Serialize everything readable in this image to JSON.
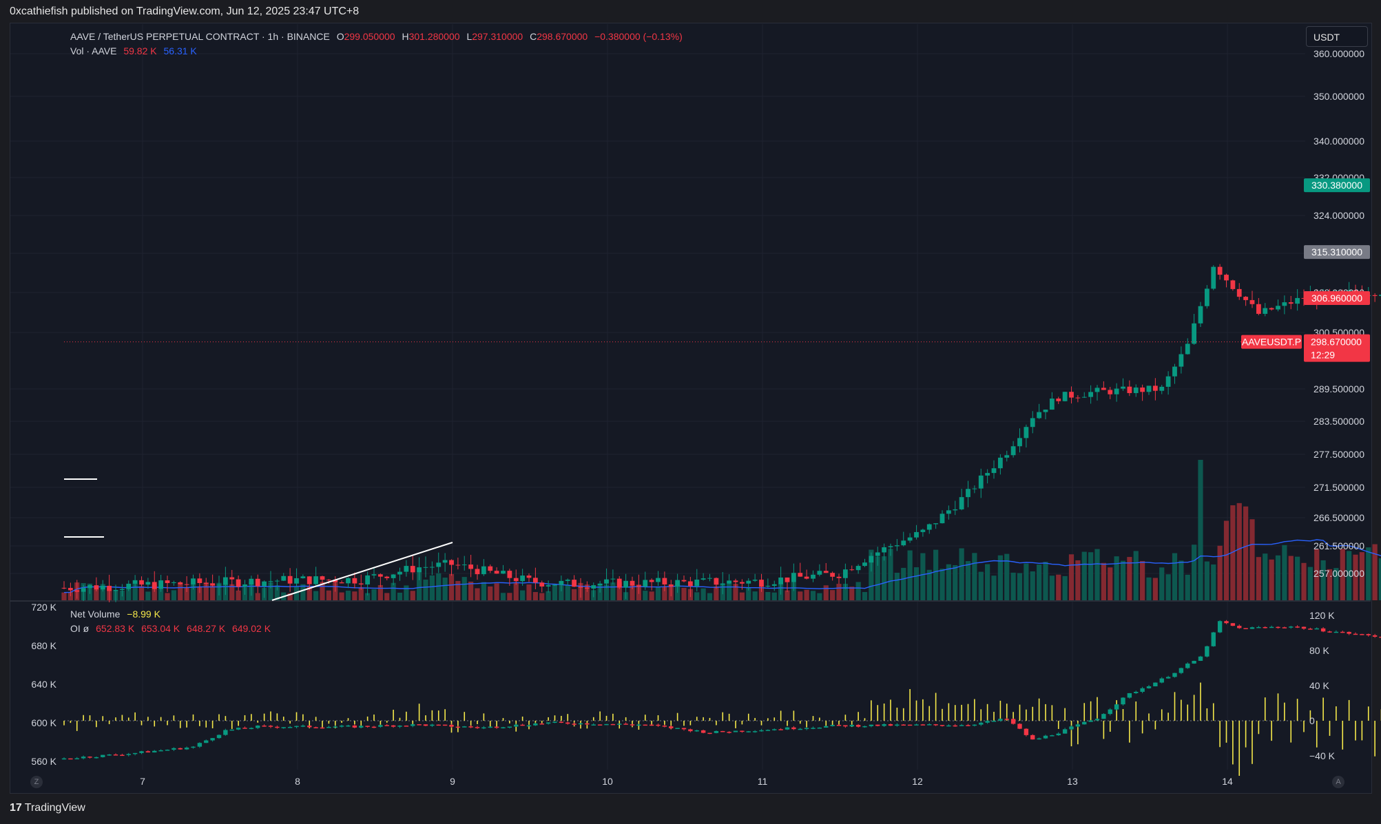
{
  "header": {
    "publisher": "0xcathiefish published on TradingView.com, Jun 12, 2025 23:47 UTC+8"
  },
  "unit_selector": "USDT",
  "main_legend": {
    "symbol": "AAVE / TetherUS PERPETUAL CONTRACT · 1h · BINANCE",
    "o_label": "O",
    "o": "299.050000",
    "h_label": "H",
    "h": "301.280000",
    "l_label": "L",
    "l": "297.310000",
    "c_label": "C",
    "c": "298.670000",
    "change": "−0.380000 (−0.13%)"
  },
  "vol_legend": {
    "label": "Vol · AAVE",
    "v1": "59.82 K",
    "v2": "56.31 K"
  },
  "net_volume_legend": {
    "label": "Net Volume",
    "value": "−8.99 K"
  },
  "oi_legend": {
    "label": "OI  ø",
    "v1": "652.83 K",
    "v2": "653.04 K",
    "v3": "648.27 K",
    "v4": "649.02 K"
  },
  "price_badges": [
    {
      "text": "330.380000",
      "color": "#089981"
    },
    {
      "text": "315.310000",
      "color": "#787b86"
    },
    {
      "text": "306.960000",
      "color": "#f23645"
    }
  ],
  "last_price": {
    "symbol": "AAVEUSDT.P",
    "price": "298.670000",
    "countdown": "12:29",
    "color": "#f23645"
  },
  "footer": {
    "brand": "TradingView",
    "logo": "17"
  },
  "scale_buttons": {
    "left": "Z",
    "right": "A"
  },
  "colors": {
    "up": "#089981",
    "down": "#f23645",
    "ma": "#2962ff",
    "netvol": "#f5e84a",
    "bg": "#151924"
  },
  "chart_data": [
    {
      "type": "candlestick",
      "title": "AAVE / TetherUS PERPETUAL CONTRACT · 1h · BINANCE",
      "x_labels": [
        "7",
        "8",
        "9",
        "10",
        "11",
        "12",
        "13",
        "14"
      ],
      "y_tick_labels": [
        "360.000000",
        "350.000000",
        "340.000000",
        "332.000000",
        "324.000000",
        "315.000000",
        "308.000000",
        "300.500000",
        "289.500000",
        "283.500000",
        "277.500000",
        "271.500000",
        "266.500000",
        "261.500000",
        "257.000000"
      ],
      "y_ticks": [
        360,
        350,
        340,
        332,
        324,
        315,
        308,
        300.5,
        289.5,
        283.5,
        277.5,
        271.5,
        266.5,
        261.5,
        257
      ],
      "close_anchors": [
        [
          0,
          254.8
        ],
        [
          20,
          255.5
        ],
        [
          35,
          256.0
        ],
        [
          46,
          256.1
        ],
        [
          55,
          258.0
        ],
        [
          60,
          258.5
        ],
        [
          72,
          255.8
        ],
        [
          78,
          255.4
        ],
        [
          95,
          255.6
        ],
        [
          108,
          255.8
        ],
        [
          120,
          257.0
        ],
        [
          125,
          260.0
        ],
        [
          133,
          264.0
        ],
        [
          140,
          270.5
        ],
        [
          146,
          278.0
        ],
        [
          150,
          284.5
        ],
        [
          154,
          288.0
        ],
        [
          160,
          289.0
        ],
        [
          170,
          289.5
        ],
        [
          174,
          298.0
        ],
        [
          178,
          313.0
        ],
        [
          185,
          304.0
        ],
        [
          192,
          307.0
        ],
        [
          200,
          308.0
        ],
        [
          210,
          308.5
        ],
        [
          218,
          308.0
        ],
        [
          226,
          307.0
        ],
        [
          230,
          311.0
        ],
        [
          235,
          313.0
        ],
        [
          240,
          306.0
        ],
        [
          245,
          301.0
        ],
        [
          250,
          298.0
        ],
        [
          256,
          294.0
        ],
        [
          260,
          295.0
        ],
        [
          264,
          300.0
        ],
        [
          265,
          298.7
        ]
      ],
      "volume": {
        "name": "Vol · AAVE",
        "ma_last": 56.31,
        "last": 59.82
      },
      "annotations": {
        "long_position": {
          "entry": 306.96,
          "target": 330.38,
          "stop": 315.31
        }
      }
    },
    {
      "type": "bar",
      "name": "Net Volume",
      "y_tick_labels": [
        "120 K",
        "80 K",
        "40 K",
        "0",
        "−40 K"
      ],
      "y_ticks": [
        120,
        80,
        40,
        0,
        -40
      ],
      "last": -8.99
    },
    {
      "type": "candlestick",
      "name": "OI",
      "y_tick_labels": [
        "720 K",
        "680 K",
        "640 K",
        "600 K",
        "560 K"
      ],
      "y_ticks": [
        720,
        680,
        640,
        600,
        560
      ],
      "close_anchors": [
        [
          0,
          563
        ],
        [
          10,
          568
        ],
        [
          20,
          575
        ],
        [
          25,
          592
        ],
        [
          30,
          596
        ],
        [
          45,
          596
        ],
        [
          55,
          598
        ],
        [
          65,
          595
        ],
        [
          75,
          600
        ],
        [
          90,
          598
        ],
        [
          100,
          590
        ],
        [
          120,
          597
        ],
        [
          140,
          598
        ],
        [
          146,
          604
        ],
        [
          150,
          582
        ],
        [
          154,
          590
        ],
        [
          160,
          605
        ],
        [
          165,
          630
        ],
        [
          170,
          645
        ],
        [
          176,
          668
        ],
        [
          179,
          705
        ],
        [
          182,
          698
        ],
        [
          190,
          700
        ],
        [
          200,
          692
        ],
        [
          210,
          685
        ],
        [
          220,
          688
        ],
        [
          228,
          690
        ],
        [
          232,
          684
        ],
        [
          240,
          676
        ],
        [
          250,
          677
        ],
        [
          258,
          671
        ],
        [
          262,
          673
        ],
        [
          265,
          650
        ]
      ],
      "last_values": [
        "652.83 K",
        "653.04 K",
        "648.27 K",
        "649.02 K"
      ]
    }
  ]
}
